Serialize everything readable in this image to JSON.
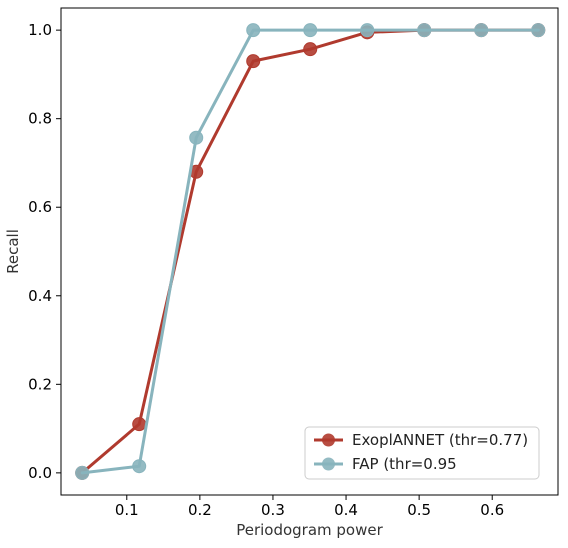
{
  "chart_data": {
    "type": "line",
    "title": "",
    "xlabel": "Periodogram power",
    "ylabel": "Recall",
    "xlim": [
      0.01,
      0.69
    ],
    "ylim": [
      -0.05,
      1.05
    ],
    "xticks": [
      0.1,
      0.2,
      0.3,
      0.4,
      0.5,
      0.6
    ],
    "xtick_labels": [
      "0.1",
      "0.2",
      "0.3",
      "0.4",
      "0.5",
      "0.6"
    ],
    "yticks": [
      0.0,
      0.2,
      0.4,
      0.6,
      0.8,
      1.0
    ],
    "ytick_labels": [
      "0.0",
      "0.2",
      "0.4",
      "0.6",
      "0.8",
      "1.0"
    ],
    "grid": false,
    "legend_position": "lower-right",
    "series": [
      {
        "name": "ExoplANNET (thr=0.77)",
        "color": "#b03a2e",
        "x": [
          0.039,
          0.117,
          0.195,
          0.273,
          0.351,
          0.429,
          0.507,
          0.585,
          0.663
        ],
        "y": [
          0.0,
          0.11,
          0.68,
          0.93,
          0.957,
          0.995,
          1.0,
          1.0,
          1.0
        ]
      },
      {
        "name": "FAP (thr=0.95",
        "color": "#88b4bd",
        "x": [
          0.039,
          0.117,
          0.195,
          0.273,
          0.351,
          0.429,
          0.507,
          0.585,
          0.663
        ],
        "y": [
          0.0,
          0.015,
          0.757,
          1.0,
          1.0,
          1.0,
          1.0,
          1.0,
          1.0
        ]
      }
    ]
  }
}
